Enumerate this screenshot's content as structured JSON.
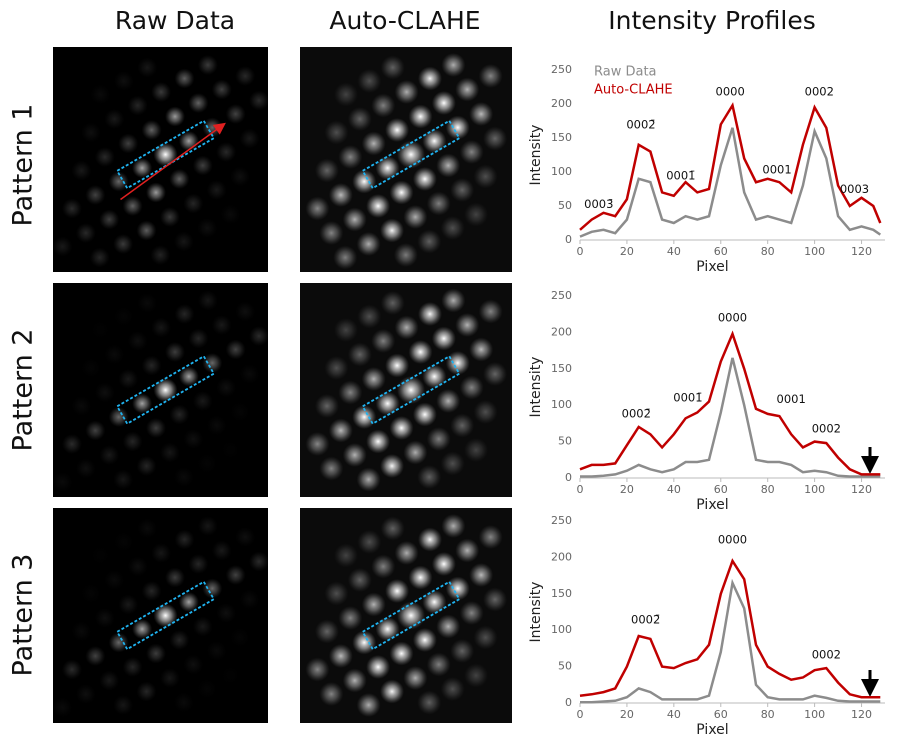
{
  "headers": [
    "Raw Data",
    "Auto-CLAHE",
    "Intensity Profiles"
  ],
  "row_labels": [
    "Pattern 1",
    "Pattern 2",
    "Pattern 3"
  ],
  "chart_data": [
    {
      "type": "line",
      "x_label": "Pixel",
      "y_label": "Intensity",
      "legend": "upper left",
      "x": [
        0,
        5,
        10,
        15,
        20,
        25,
        30,
        35,
        40,
        45,
        50,
        55,
        60,
        65,
        70,
        75,
        80,
        85,
        90,
        95,
        100,
        105,
        110,
        115,
        120,
        125,
        128
      ],
      "series": [
        {
          "name": "Raw Data",
          "color": "#8c8c8c",
          "values": [
            5,
            12,
            15,
            10,
            30,
            90,
            85,
            30,
            25,
            35,
            30,
            35,
            110,
            165,
            70,
            30,
            35,
            30,
            25,
            80,
            160,
            120,
            35,
            15,
            20,
            15,
            8
          ]
        },
        {
          "name": "Auto-CLAHE",
          "color": "#c00000",
          "values": [
            15,
            30,
            40,
            35,
            60,
            140,
            130,
            70,
            65,
            85,
            70,
            75,
            170,
            198,
            120,
            85,
            90,
            85,
            70,
            140,
            195,
            165,
            80,
            50,
            62,
            50,
            25
          ]
        }
      ],
      "xlim": [
        0,
        130
      ],
      "ylim": [
        0,
        250
      ],
      "xticks": [
        0,
        20,
        40,
        60,
        80,
        100,
        120
      ],
      "yticks": [
        0,
        50,
        100,
        150,
        200,
        250
      ],
      "annotations": [
        {
          "text": "0003̄",
          "x": 8,
          "y": 52
        },
        {
          "text": "0002̄",
          "x": 26,
          "y": 169
        },
        {
          "text": "0001̄",
          "x": 43,
          "y": 94
        },
        {
          "text": "0000",
          "x": 64,
          "y": 218
        },
        {
          "text": "0001",
          "x": 84,
          "y": 103
        },
        {
          "text": "0002",
          "x": 102,
          "y": 218
        },
        {
          "text": "0003",
          "x": 117,
          "y": 74
        }
      ]
    },
    {
      "type": "line",
      "x_label": "Pixel",
      "y_label": "Intensity",
      "x": [
        0,
        5,
        10,
        15,
        20,
        25,
        30,
        35,
        40,
        45,
        50,
        55,
        60,
        65,
        70,
        75,
        80,
        85,
        90,
        95,
        100,
        105,
        110,
        115,
        120,
        125,
        128
      ],
      "series": [
        {
          "color": "#8c8c8c",
          "values": [
            2,
            2,
            3,
            5,
            10,
            18,
            12,
            8,
            12,
            22,
            22,
            25,
            90,
            165,
            100,
            25,
            22,
            22,
            18,
            8,
            10,
            8,
            3,
            2,
            2,
            2,
            2
          ]
        },
        {
          "color": "#c00000",
          "values": [
            12,
            18,
            18,
            20,
            45,
            70,
            60,
            42,
            60,
            82,
            90,
            105,
            160,
            198,
            150,
            95,
            88,
            85,
            60,
            42,
            50,
            48,
            28,
            12,
            5,
            5,
            5
          ]
        }
      ],
      "xlim": [
        0,
        130
      ],
      "ylim": [
        0,
        250
      ],
      "xticks": [
        0,
        20,
        40,
        60,
        80,
        100,
        120
      ],
      "yticks": [
        0,
        50,
        100,
        150,
        200,
        250
      ],
      "annotations": [
        {
          "text": "0002̄",
          "x": 24,
          "y": 88
        },
        {
          "text": "0001̄",
          "x": 46,
          "y": 110
        },
        {
          "text": "0000",
          "x": 65,
          "y": 220
        },
        {
          "text": "0001",
          "x": 90,
          "y": 108
        },
        {
          "text": "0002",
          "x": 105,
          "y": 67
        }
      ]
    },
    {
      "type": "line",
      "x_label": "Pixel",
      "y_label": "Intensity",
      "x": [
        0,
        5,
        10,
        15,
        20,
        25,
        30,
        35,
        40,
        45,
        50,
        55,
        60,
        65,
        70,
        75,
        80,
        85,
        90,
        95,
        100,
        105,
        110,
        115,
        120,
        125,
        128
      ],
      "series": [
        {
          "color": "#8c8c8c",
          "values": [
            1,
            1,
            2,
            3,
            8,
            20,
            15,
            5,
            5,
            5,
            5,
            10,
            70,
            165,
            130,
            25,
            8,
            5,
            5,
            5,
            10,
            7,
            3,
            2,
            2,
            2,
            2
          ]
        },
        {
          "color": "#c00000",
          "values": [
            10,
            12,
            15,
            20,
            50,
            92,
            88,
            50,
            48,
            55,
            60,
            80,
            150,
            195,
            170,
            80,
            50,
            40,
            32,
            35,
            45,
            48,
            28,
            12,
            8,
            8,
            8
          ]
        }
      ],
      "xlim": [
        0,
        130
      ],
      "ylim": [
        0,
        250
      ],
      "xticks": [
        0,
        20,
        40,
        60,
        80,
        100,
        120
      ],
      "yticks": [
        0,
        50,
        100,
        150,
        200,
        250
      ],
      "annotations": [
        {
          "text": "0002̄",
          "x": 28,
          "y": 114
        },
        {
          "text": "0000",
          "x": 65,
          "y": 224
        },
        {
          "text": "0002",
          "x": 105,
          "y": 66
        }
      ]
    }
  ]
}
